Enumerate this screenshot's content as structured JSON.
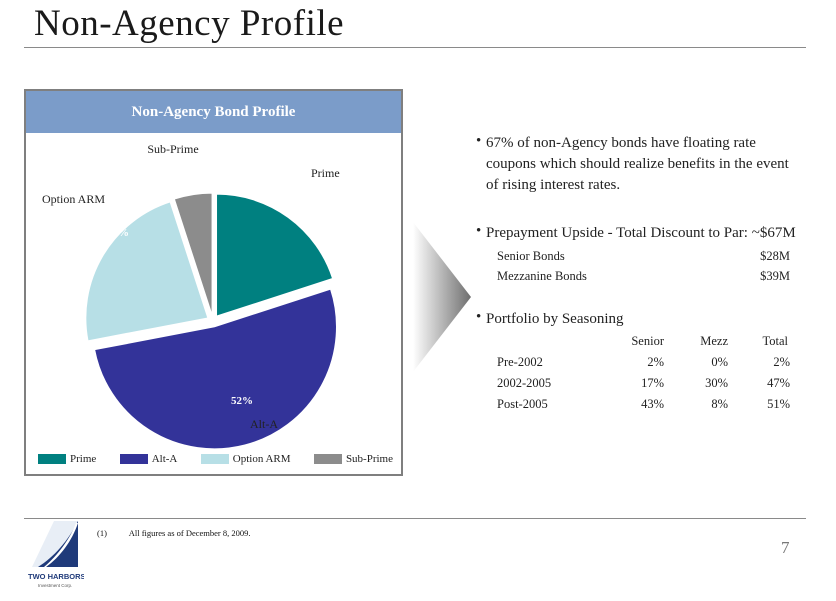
{
  "title": "Non-Agency Profile",
  "chart_panel": {
    "header": "Non-Agency Bond Profile"
  },
  "chart_data": {
    "type": "pie",
    "title": "Non-Agency Bond Profile",
    "slices": [
      {
        "name": "Prime",
        "value": 20,
        "label": "20%",
        "color": "#008080"
      },
      {
        "name": "Alt-A",
        "value": 52,
        "label": "52%",
        "color": "#333399"
      },
      {
        "name": "Option ARM",
        "value": 23,
        "label": "23%",
        "color": "#b7dfe6"
      },
      {
        "name": "Sub-Prime",
        "value": 5,
        "label": "5%",
        "color": "#8c8c8c"
      }
    ],
    "legend_placement": "bottom"
  },
  "bullets": {
    "b1": [
      "67% of non-Agency bonds have floating rate",
      "coupons which should realize benefits in the event",
      "of rising interest rates."
    ],
    "b2": "Prepayment Upside - Total Discount to Par: ~$67M",
    "b2_rows": [
      {
        "label": "Senior Bonds",
        "value": "$28M"
      },
      {
        "label": "Mezzanine Bonds",
        "value": "$39M"
      }
    ],
    "b3": "Portfolio by Seasoning",
    "seasoning": {
      "columns": [
        "Senior",
        "Mezz",
        "Total"
      ],
      "rows": [
        {
          "label": "Pre-2002",
          "values": [
            "2%",
            "0%",
            "2%"
          ]
        },
        {
          "label": "2002-2005",
          "values": [
            "17%",
            "30%",
            "47%"
          ]
        },
        {
          "label": "Post-2005",
          "values": [
            "43%",
            "8%",
            "51%"
          ]
        }
      ]
    }
  },
  "footnote": {
    "num": "(1)",
    "text": "All figures as of December 8, 2009."
  },
  "page_number": "7",
  "logo": {
    "text": "TWO HARBORS",
    "subtext": "Investment Corp."
  }
}
